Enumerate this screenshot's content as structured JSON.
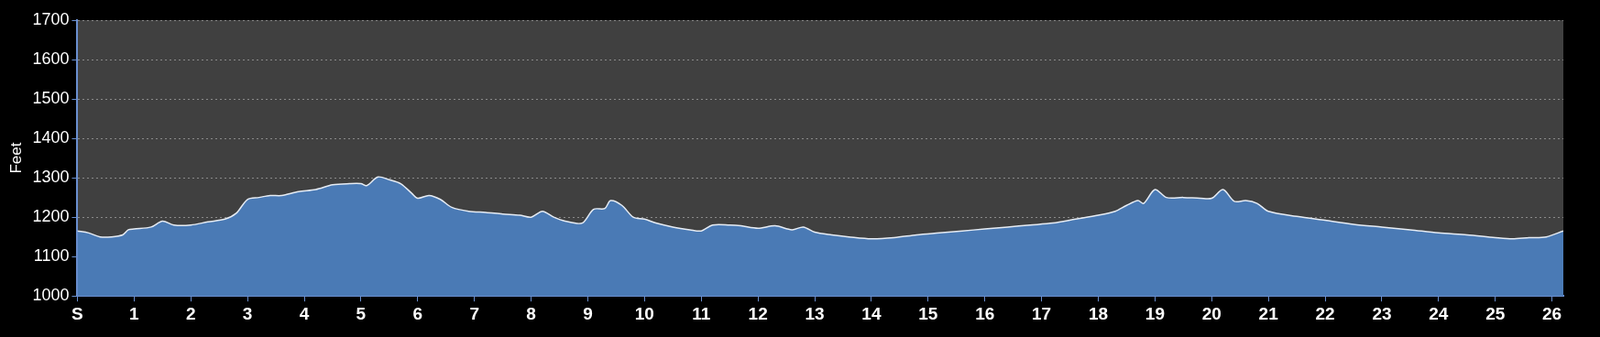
{
  "chart_data": {
    "type": "area",
    "y_label": "Feet",
    "x": [
      0,
      0.2,
      0.4,
      0.6,
      0.8,
      0.9,
      1.0,
      1.3,
      1.5,
      1.7,
      2.0,
      2.3,
      2.6,
      2.8,
      3.0,
      3.2,
      3.4,
      3.6,
      3.9,
      4.2,
      4.5,
      4.8,
      5.0,
      5.1,
      5.3,
      5.5,
      5.7,
      5.9,
      6.0,
      6.2,
      6.4,
      6.6,
      6.9,
      7.2,
      7.5,
      7.8,
      8.0,
      8.2,
      8.4,
      8.6,
      8.9,
      9.1,
      9.3,
      9.4,
      9.6,
      9.8,
      10.0,
      10.2,
      10.5,
      10.8,
      11.0,
      11.2,
      11.5,
      11.7,
      12.0,
      12.3,
      12.6,
      12.8,
      13.0,
      13.3,
      13.6,
      14.0,
      14.4,
      14.8,
      15.2,
      15.6,
      16.0,
      16.4,
      16.8,
      17.2,
      17.6,
      18.0,
      18.3,
      18.5,
      18.7,
      18.8,
      19.0,
      19.2,
      19.5,
      19.8,
      20.0,
      20.2,
      20.4,
      20.6,
      20.8,
      21.0,
      21.5,
      22.0,
      22.5,
      23.0,
      23.5,
      24.0,
      24.5,
      25.0,
      25.3,
      25.6,
      25.9,
      26.2
    ],
    "values": [
      1165,
      1160,
      1150,
      1150,
      1155,
      1168,
      1170,
      1175,
      1190,
      1180,
      1180,
      1188,
      1195,
      1210,
      1245,
      1250,
      1255,
      1255,
      1265,
      1270,
      1282,
      1285,
      1285,
      1280,
      1302,
      1295,
      1285,
      1260,
      1248,
      1255,
      1245,
      1225,
      1215,
      1212,
      1208,
      1205,
      1200,
      1215,
      1200,
      1190,
      1185,
      1220,
      1222,
      1242,
      1230,
      1200,
      1195,
      1185,
      1175,
      1168,
      1165,
      1180,
      1180,
      1178,
      1172,
      1178,
      1168,
      1175,
      1162,
      1155,
      1150,
      1145,
      1148,
      1155,
      1160,
      1165,
      1170,
      1175,
      1180,
      1185,
      1195,
      1205,
      1215,
      1230,
      1242,
      1235,
      1270,
      1250,
      1250,
      1248,
      1248,
      1270,
      1240,
      1242,
      1235,
      1215,
      1202,
      1192,
      1182,
      1175,
      1168,
      1160,
      1155,
      1148,
      1145,
      1148,
      1150,
      1165
    ],
    "color": "#4a7ab5",
    "xlim": [
      0,
      26.2
    ],
    "xticks": [
      {
        "value": 0,
        "label": "S"
      },
      1,
      2,
      3,
      4,
      5,
      6,
      7,
      8,
      9,
      10,
      11,
      12,
      13,
      14,
      15,
      16,
      17,
      18,
      19,
      20,
      21,
      22,
      23,
      24,
      25,
      26
    ],
    "ylim": [
      1000,
      1700
    ],
    "yticks": [
      1000,
      1100,
      1200,
      1300,
      1400,
      1500,
      1600,
      1700
    ],
    "grid": true
  }
}
